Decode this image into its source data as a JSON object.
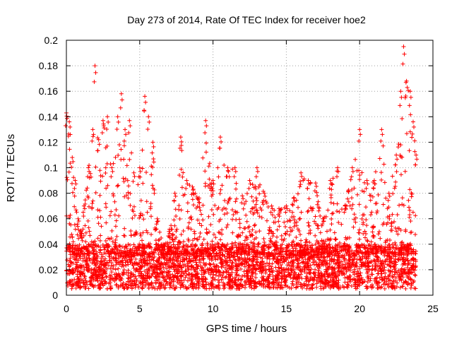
{
  "chart_data": {
    "type": "scatter",
    "title": "Day 273 of 2014, Rate Of TEC Index for receiver hoe2",
    "xlabel": "GPS time / hours",
    "ylabel": "ROTI / TECUs",
    "xlim": [
      0,
      25
    ],
    "ylim": [
      0,
      0.2
    ],
    "x_ticks": [
      "0",
      "5",
      "10",
      "15",
      "20",
      "25"
    ],
    "y_ticks": [
      "0",
      "0.02",
      "0.04",
      "0.06",
      "0.08",
      "0.1",
      "0.12",
      "0.14",
      "0.16",
      "0.18",
      "0.2"
    ],
    "grid": true,
    "marker": "+",
    "marker_color": "#ff0000",
    "x_data_range": [
      0,
      23.85
    ],
    "baseline_range": [
      0.005,
      0.04
    ],
    "envelope": [
      {
        "x": 0.0,
        "y": 0.143
      },
      {
        "x": 0.2,
        "y": 0.136
      },
      {
        "x": 0.4,
        "y": 0.108
      },
      {
        "x": 0.6,
        "y": 0.09
      },
      {
        "x": 0.8,
        "y": 0.06
      },
      {
        "x": 1.0,
        "y": 0.05
      },
      {
        "x": 1.2,
        "y": 0.07
      },
      {
        "x": 1.5,
        "y": 0.1
      },
      {
        "x": 1.8,
        "y": 0.13
      },
      {
        "x": 1.95,
        "y": 0.18
      },
      {
        "x": 2.2,
        "y": 0.122
      },
      {
        "x": 2.5,
        "y": 0.137
      },
      {
        "x": 2.8,
        "y": 0.14
      },
      {
        "x": 3.1,
        "y": 0.1
      },
      {
        "x": 3.5,
        "y": 0.14
      },
      {
        "x": 3.75,
        "y": 0.158
      },
      {
        "x": 4.0,
        "y": 0.13
      },
      {
        "x": 4.3,
        "y": 0.137
      },
      {
        "x": 4.6,
        "y": 0.096
      },
      {
        "x": 5.0,
        "y": 0.1
      },
      {
        "x": 5.35,
        "y": 0.156
      },
      {
        "x": 5.6,
        "y": 0.14
      },
      {
        "x": 5.9,
        "y": 0.12
      },
      {
        "x": 6.2,
        "y": 0.06
      },
      {
        "x": 6.6,
        "y": 0.04
      },
      {
        "x": 7.0,
        "y": 0.05
      },
      {
        "x": 7.4,
        "y": 0.08
      },
      {
        "x": 7.8,
        "y": 0.124
      },
      {
        "x": 8.2,
        "y": 0.09
      },
      {
        "x": 8.6,
        "y": 0.085
      },
      {
        "x": 9.0,
        "y": 0.075
      },
      {
        "x": 9.5,
        "y": 0.137
      },
      {
        "x": 10.0,
        "y": 0.09
      },
      {
        "x": 10.5,
        "y": 0.124
      },
      {
        "x": 11.0,
        "y": 0.1
      },
      {
        "x": 11.5,
        "y": 0.1
      },
      {
        "x": 12.0,
        "y": 0.078
      },
      {
        "x": 12.5,
        "y": 0.09
      },
      {
        "x": 13.0,
        "y": 0.1
      },
      {
        "x": 13.5,
        "y": 0.08
      },
      {
        "x": 14.0,
        "y": 0.07
      },
      {
        "x": 14.5,
        "y": 0.068
      },
      {
        "x": 15.0,
        "y": 0.07
      },
      {
        "x": 15.5,
        "y": 0.076
      },
      {
        "x": 16.0,
        "y": 0.096
      },
      {
        "x": 16.5,
        "y": 0.09
      },
      {
        "x": 17.0,
        "y": 0.088
      },
      {
        "x": 17.5,
        "y": 0.06
      },
      {
        "x": 18.0,
        "y": 0.09
      },
      {
        "x": 18.5,
        "y": 0.1
      },
      {
        "x": 19.0,
        "y": 0.07
      },
      {
        "x": 19.5,
        "y": 0.1
      },
      {
        "x": 20.0,
        "y": 0.13
      },
      {
        "x": 20.5,
        "y": 0.09
      },
      {
        "x": 21.0,
        "y": 0.09
      },
      {
        "x": 21.5,
        "y": 0.13
      },
      {
        "x": 22.0,
        "y": 0.08
      },
      {
        "x": 22.5,
        "y": 0.11
      },
      {
        "x": 22.8,
        "y": 0.16
      },
      {
        "x": 23.0,
        "y": 0.195
      },
      {
        "x": 23.2,
        "y": 0.168
      },
      {
        "x": 23.45,
        "y": 0.16
      },
      {
        "x": 23.65,
        "y": 0.136
      },
      {
        "x": 23.85,
        "y": 0.11
      }
    ]
  }
}
